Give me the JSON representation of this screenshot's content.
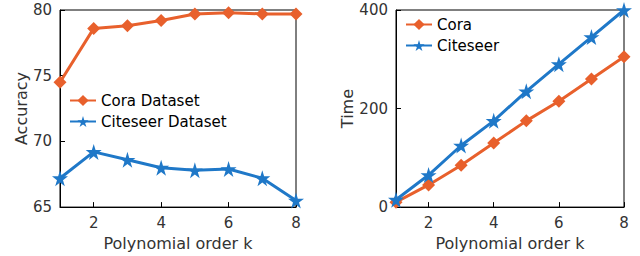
{
  "chart_data": [
    {
      "type": "line",
      "x_label": "Polynomial order k",
      "y_label": "Accuracy",
      "x": [
        1,
        2,
        3,
        4,
        5,
        6,
        7,
        8
      ],
      "xlim": [
        1,
        8
      ],
      "xticks": [
        2,
        4,
        6,
        8
      ],
      "ylim": [
        65,
        80
      ],
      "yticks": [
        65,
        70,
        75,
        80
      ],
      "grid": false,
      "legend": "left",
      "series": [
        {
          "name": "Cora Dataset",
          "color": "#e8602c",
          "marker": "diamond",
          "values": [
            74.5,
            78.6,
            78.8,
            79.2,
            79.7,
            79.8,
            79.7,
            79.7
          ]
        },
        {
          "name": "Citeseer Dataset",
          "color": "#1f78c8",
          "marker": "star",
          "values": [
            67.2,
            69.2,
            68.6,
            68.0,
            67.8,
            67.9,
            67.2,
            65.5
          ]
        }
      ]
    },
    {
      "type": "line",
      "x_label": "Polynomial order k",
      "y_label": "Time",
      "x": [
        1,
        2,
        3,
        4,
        5,
        6,
        7,
        8
      ],
      "xlim": [
        1,
        8
      ],
      "xticks": [
        2,
        4,
        6,
        8
      ],
      "ylim": [
        0,
        400
      ],
      "yticks": [
        0,
        200,
        400
      ],
      "grid": false,
      "legend": "top left",
      "series": [
        {
          "name": "Cora",
          "color": "#e8602c",
          "marker": "diamond",
          "values": [
            10,
            45,
            85,
            130,
            175,
            215,
            260,
            305
          ]
        },
        {
          "name": "Citeseer",
          "color": "#1f78c8",
          "marker": "star",
          "values": [
            15,
            65,
            125,
            175,
            235,
            290,
            345,
            400
          ]
        }
      ]
    }
  ]
}
